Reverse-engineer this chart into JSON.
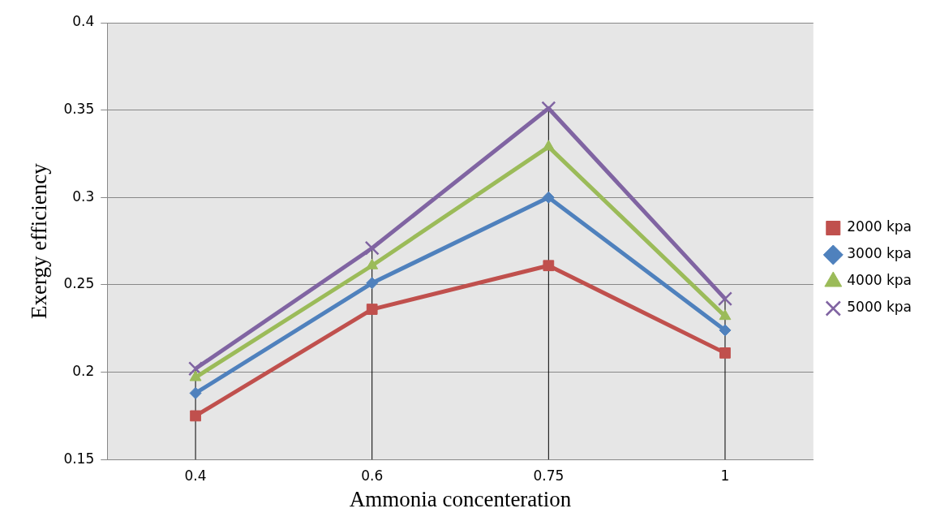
{
  "chart_data": {
    "type": "line",
    "xlabel": "Ammonia concenteration",
    "ylabel": "Exergy efficiency",
    "categories": [
      "0.4",
      "0.6",
      "0.75",
      "1"
    ],
    "series": [
      {
        "name": "2000 kpa",
        "color": "#c0504d",
        "marker": "square",
        "values": [
          0.175,
          0.236,
          0.261,
          0.211
        ]
      },
      {
        "name": "3000 kpa",
        "color": "#4f81bd",
        "marker": "diamond",
        "values": [
          0.188,
          0.251,
          0.3,
          0.224
        ]
      },
      {
        "name": "4000 kpa",
        "color": "#9bbb59",
        "marker": "triangle",
        "values": [
          0.197,
          0.261,
          0.329,
          0.232
        ]
      },
      {
        "name": "5000 kpa",
        "color": "#8064a2",
        "marker": "cross",
        "values": [
          0.202,
          0.271,
          0.351,
          0.242
        ],
        "errors": [
          [
            0.15,
            0.202
          ],
          [
            0.15,
            0.271
          ],
          [
            0.15,
            0.351
          ],
          [
            0.15,
            0.242
          ]
        ]
      }
    ],
    "ylim": [
      0.15,
      0.4
    ],
    "yticks": [
      0.15,
      0.2,
      0.25,
      0.3,
      0.35,
      0.4
    ],
    "grid": "y",
    "legend": "right"
  }
}
